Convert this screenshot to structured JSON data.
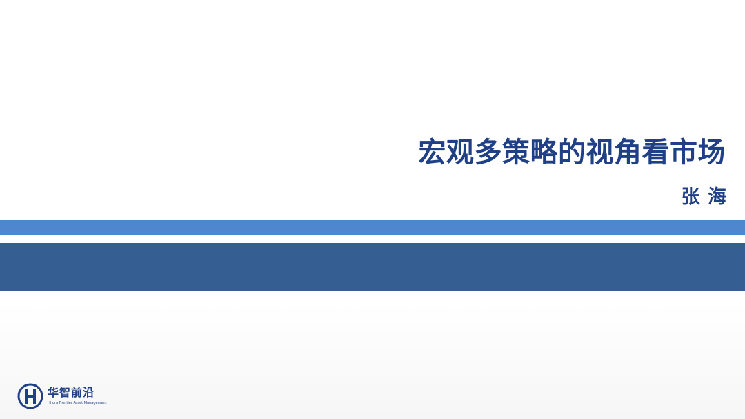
{
  "slide": {
    "title": "宏观多策略的视角看市场",
    "author": "张 海"
  },
  "logo": {
    "name_cn": "华智前沿",
    "name_en": "Hhora Frontier Asset Management",
    "icon": "h-monogram-logo-icon"
  },
  "colors": {
    "title_text": "#1f3f86",
    "band_light": "#4f87cf",
    "band_dark": "#355f93"
  }
}
